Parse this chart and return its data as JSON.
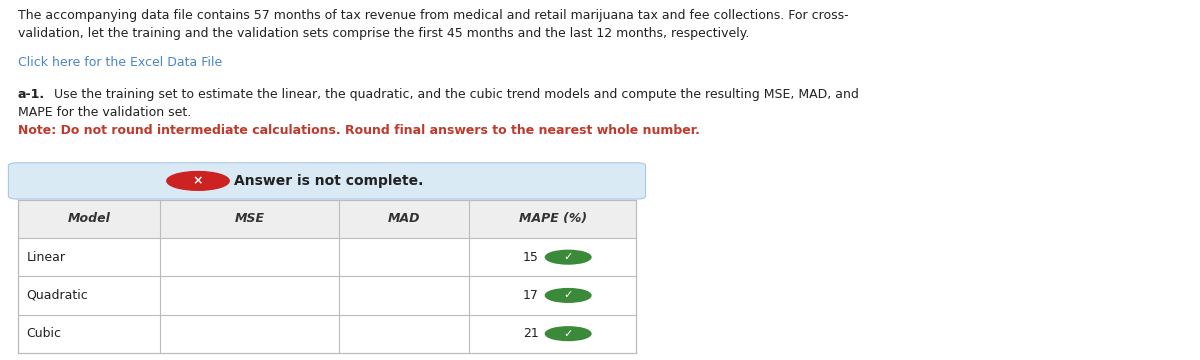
{
  "title_line1": "The accompanying data file contains 57 months of tax revenue from medical and retail marijuana tax and fee collections. For cross-",
  "title_line2": "validation, let the training and the validation sets comprise the first 45 months and the last 12 months, respectively.",
  "link_text": "Click here for the Excel Data File",
  "bold_label": "a-1.",
  "body_line1": " Use the training set to estimate the linear, the quadratic, and the cubic trend models and compute the resulting MSE, MAD, and",
  "body_line2": "MAPE for the validation set.",
  "note_text": "Note: Do not round intermediate calculations. Round final answers to the nearest whole number.",
  "banner_text": "Answer is not complete.",
  "col_headers": [
    "Model",
    "MSE",
    "MAD",
    "MAPE (%)"
  ],
  "row_labels": [
    "Linear",
    "Quadratic",
    "Cubic"
  ],
  "mape_values": [
    "15",
    "17",
    "21"
  ],
  "bg_color": "#ffffff",
  "banner_bg": "#daeaf5",
  "banner_border": "#a8c8e8",
  "link_color": "#4a86c8",
  "note_color": "#c0392b",
  "text_color": "#222222",
  "check_color": "#3a8a3a",
  "banner_x_color": "#cc2222",
  "grid_color": "#bbbbbb",
  "header_bg": "#eeeeee"
}
